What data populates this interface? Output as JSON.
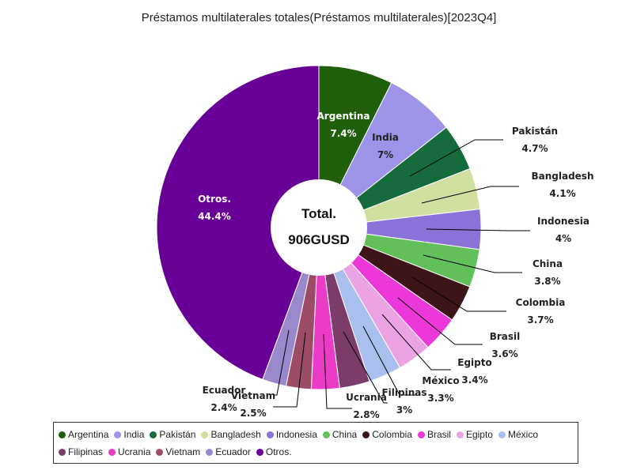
{
  "chart_data": {
    "type": "pie",
    "title": "Préstamos multilaterales totales(Préstamos multilaterales)[2023Q4]",
    "center_label": [
      "Total.",
      "906GUSD"
    ],
    "slices": [
      {
        "label": "Argentina",
        "value": 7.4,
        "display": "7.4%",
        "color": "#1f5e0b"
      },
      {
        "label": "India",
        "value": 7.0,
        "display": "7%",
        "color": "#9b94e8"
      },
      {
        "label": "Pakistán",
        "value": 4.7,
        "display": "4.7%",
        "color": "#156b3b"
      },
      {
        "label": "Bangladesh",
        "value": 4.1,
        "display": "4.1%",
        "color": "#cfe0a0"
      },
      {
        "label": "Indonesia",
        "value": 4.0,
        "display": "4%",
        "color": "#8a72d6"
      },
      {
        "label": "China",
        "value": 3.8,
        "display": "3.8%",
        "color": "#62c05a"
      },
      {
        "label": "Colombia",
        "value": 3.7,
        "display": "3.7%",
        "color": "#3d1418"
      },
      {
        "label": "Brasil",
        "value": 3.6,
        "display": "3.6%",
        "color": "#ec38d9"
      },
      {
        "label": "Egipto",
        "value": 3.4,
        "display": "3.4%",
        "color": "#eca3e4"
      },
      {
        "label": "México",
        "value": 3.3,
        "display": "3.3%",
        "color": "#a9bfee"
      },
      {
        "label": "Filipinas",
        "value": 3.0,
        "display": "3%",
        "color": "#7b3c6a"
      },
      {
        "label": "Ucrania",
        "value": 2.8,
        "display": "2.8%",
        "color": "#ea3cc6"
      },
      {
        "label": "Vietnam",
        "value": 2.5,
        "display": "2.5%",
        "color": "#9c4c66"
      },
      {
        "label": "Ecuador",
        "value": 2.4,
        "display": "2.4%",
        "color": "#9a88cc"
      },
      {
        "label": "Otros.",
        "value": 44.4,
        "display": "44.4%",
        "color": "#680098"
      }
    ]
  }
}
